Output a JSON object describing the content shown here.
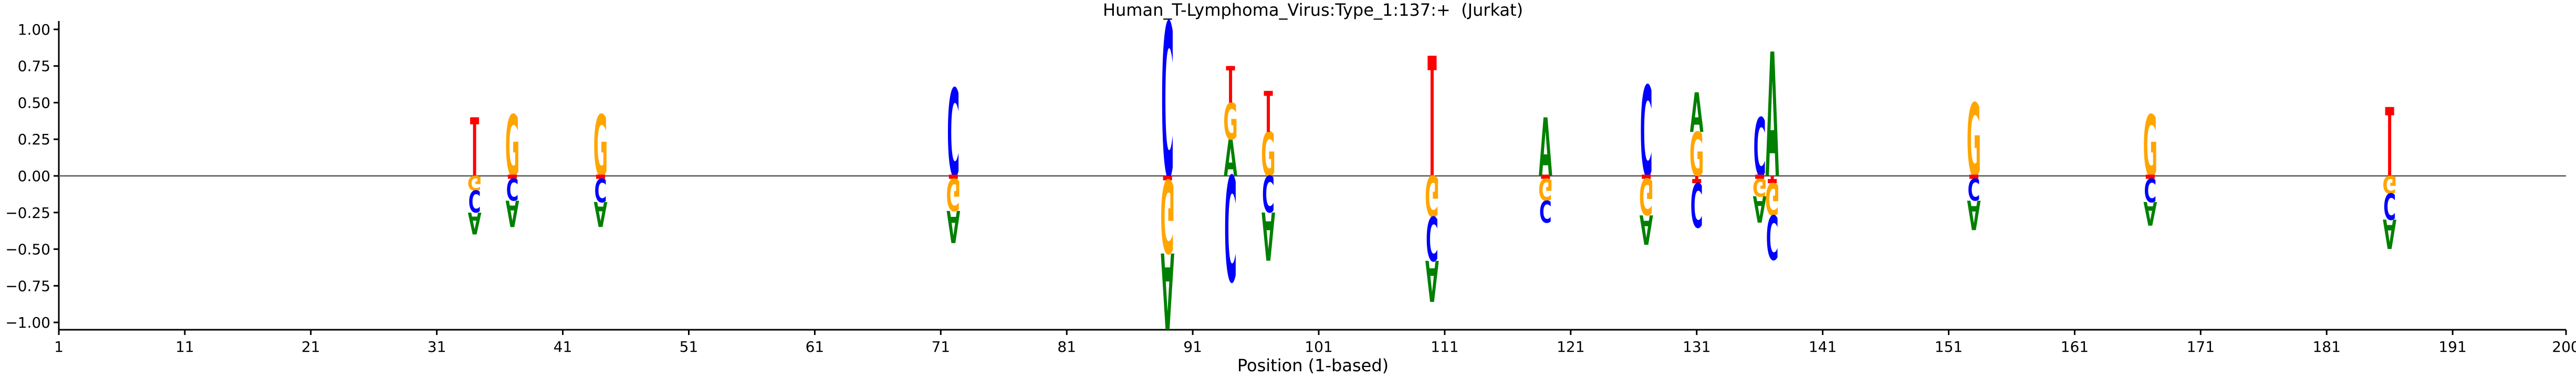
{
  "chart_data": {
    "type": "sequence-logo",
    "title": "Human_T-Lymphoma_Virus:Type_1:137:+  (Jurkat)",
    "xlabel": "Position (1-based)",
    "ylabel": "",
    "xlim": [
      1,
      200
    ],
    "ylim": [
      -1.05,
      1.05
    ],
    "x_ticks": [
      1,
      11,
      21,
      31,
      41,
      51,
      61,
      71,
      81,
      91,
      101,
      111,
      121,
      131,
      141,
      151,
      161,
      171,
      181,
      191,
      200
    ],
    "y_ticks": [
      -1.0,
      -0.75,
      -0.5,
      -0.25,
      0.0,
      0.25,
      0.5,
      0.75,
      1.0
    ],
    "y_tick_labels": [
      "−1.00",
      "−0.75",
      "−0.50",
      "−0.25",
      "0.00",
      "0.25",
      "0.50",
      "0.75",
      "1.00"
    ],
    "grid": false,
    "colors": {
      "A": "#008000",
      "C": "#0000ff",
      "G": "#ffa500",
      "T": "#ff0000"
    },
    "positions": [
      {
        "pos": 34,
        "above": [
          {
            "base": "T",
            "h": 0.4
          }
        ],
        "below": [
          {
            "base": "G",
            "h": 0.1
          },
          {
            "base": "C",
            "h": 0.15
          },
          {
            "base": "A",
            "h": 0.15
          }
        ]
      },
      {
        "pos": 37,
        "above": [
          {
            "base": "G",
            "h": 0.42
          }
        ],
        "below": [
          {
            "base": "T",
            "h": 0.02
          },
          {
            "base": "C",
            "h": 0.15
          },
          {
            "base": "A",
            "h": 0.18
          }
        ]
      },
      {
        "pos": 44,
        "above": [
          {
            "base": "G",
            "h": 0.42
          }
        ],
        "below": [
          {
            "base": "T",
            "h": 0.02
          },
          {
            "base": "C",
            "h": 0.16
          },
          {
            "base": "A",
            "h": 0.17
          }
        ]
      },
      {
        "pos": 72,
        "above": [
          {
            "base": "C",
            "h": 0.6
          }
        ],
        "below": [
          {
            "base": "T",
            "h": 0.02
          },
          {
            "base": "G",
            "h": 0.22
          },
          {
            "base": "A",
            "h": 0.22
          }
        ]
      },
      {
        "pos": 89,
        "above": [
          {
            "base": "C",
            "h": 1.05
          }
        ],
        "below": [
          {
            "base": "T",
            "h": 0.03
          },
          {
            "base": "G",
            "h": 0.5
          },
          {
            "base": "A",
            "h": 0.52
          }
        ]
      },
      {
        "pos": 94,
        "above": [
          {
            "base": "A",
            "h": 0.25
          },
          {
            "base": "G",
            "h": 0.25
          },
          {
            "base": "T",
            "h": 0.25
          }
        ],
        "below": [
          {
            "base": "C",
            "h": 0.72
          }
        ]
      },
      {
        "pos": 97,
        "above": [
          {
            "base": "G",
            "h": 0.3
          },
          {
            "base": "T",
            "h": 0.28
          }
        ],
        "below": [
          {
            "base": "C",
            "h": 0.25
          },
          {
            "base": "A",
            "h": 0.33
          }
        ]
      },
      {
        "pos": 110,
        "above": [
          {
            "base": "T",
            "h": 0.82
          }
        ],
        "below": [
          {
            "base": "G",
            "h": 0.28
          },
          {
            "base": "C",
            "h": 0.3
          },
          {
            "base": "A",
            "h": 0.28
          }
        ]
      },
      {
        "pos": 119,
        "above": [
          {
            "base": "A",
            "h": 0.4
          }
        ],
        "below": [
          {
            "base": "T",
            "h": 0.02
          },
          {
            "base": "G",
            "h": 0.15
          },
          {
            "base": "C",
            "h": 0.15
          }
        ]
      },
      {
        "pos": 127,
        "above": [
          {
            "base": "C",
            "h": 0.62
          }
        ],
        "below": [
          {
            "base": "T",
            "h": 0.02
          },
          {
            "base": "G",
            "h": 0.25
          },
          {
            "base": "A",
            "h": 0.2
          }
        ]
      },
      {
        "pos": 131,
        "above": [
          {
            "base": "G",
            "h": 0.3
          },
          {
            "base": "A",
            "h": 0.27
          }
        ],
        "below": [
          {
            "base": "T",
            "h": 0.05
          },
          {
            "base": "C",
            "h": 0.3
          }
        ]
      },
      {
        "pos": 136,
        "above": [
          {
            "base": "C",
            "h": 0.4
          }
        ],
        "below": [
          {
            "base": "T",
            "h": 0.02
          },
          {
            "base": "G",
            "h": 0.12
          },
          {
            "base": "A",
            "h": 0.18
          }
        ]
      },
      {
        "pos": 137,
        "above": [
          {
            "base": "A",
            "h": 0.85
          }
        ],
        "below": [
          {
            "base": "T",
            "h": 0.05
          },
          {
            "base": "G",
            "h": 0.22
          },
          {
            "base": "C",
            "h": 0.3
          }
        ]
      },
      {
        "pos": 153,
        "above": [
          {
            "base": "G",
            "h": 0.5
          }
        ],
        "below": [
          {
            "base": "T",
            "h": 0.02
          },
          {
            "base": "C",
            "h": 0.15
          },
          {
            "base": "A",
            "h": 0.2
          }
        ]
      },
      {
        "pos": 167,
        "above": [
          {
            "base": "G",
            "h": 0.42
          }
        ],
        "below": [
          {
            "base": "T",
            "h": 0.02
          },
          {
            "base": "C",
            "h": 0.16
          },
          {
            "base": "A",
            "h": 0.16
          }
        ]
      },
      {
        "pos": 186,
        "above": [
          {
            "base": "T",
            "h": 0.47
          }
        ],
        "below": [
          {
            "base": "G",
            "h": 0.12
          },
          {
            "base": "C",
            "h": 0.18
          },
          {
            "base": "A",
            "h": 0.2
          }
        ]
      }
    ]
  }
}
